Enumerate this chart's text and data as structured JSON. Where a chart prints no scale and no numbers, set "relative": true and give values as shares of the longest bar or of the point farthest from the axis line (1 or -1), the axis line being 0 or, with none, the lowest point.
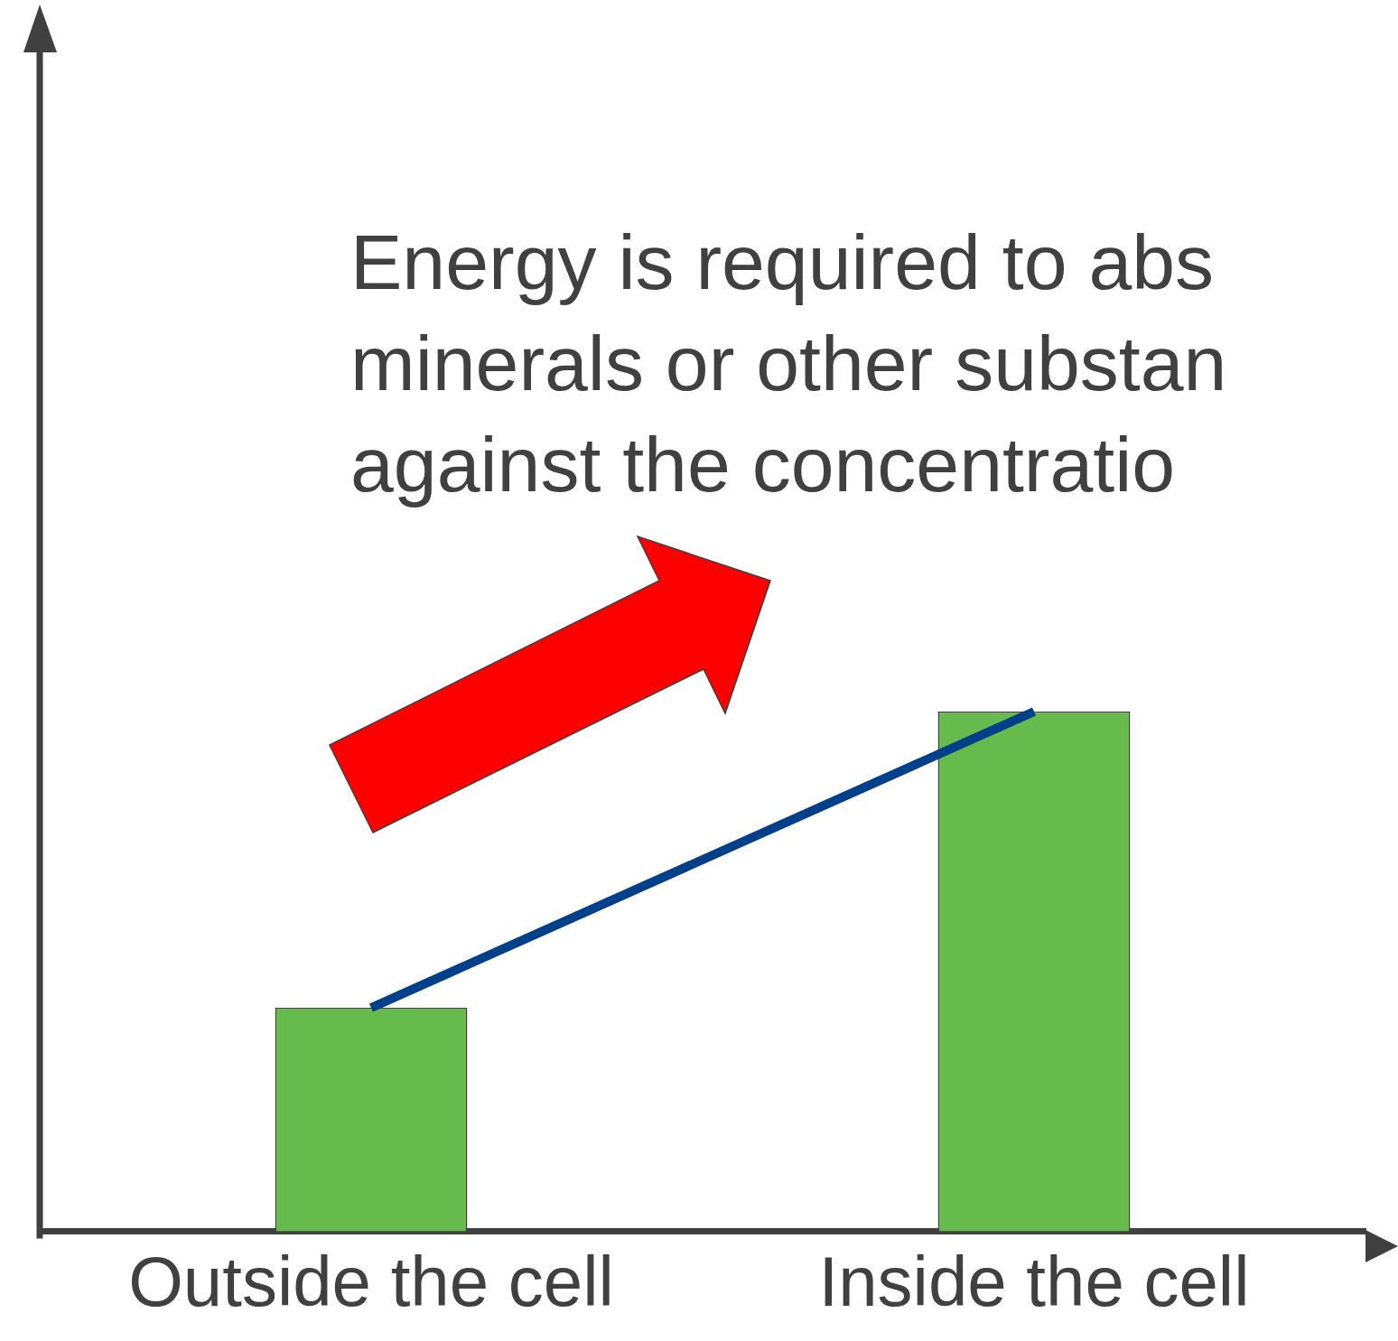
{
  "chart_data": {
    "type": "bar",
    "relative": true,
    "categories": [
      "Outside the cell",
      "Inside the cell"
    ],
    "series": [
      {
        "color": "#66bb4c",
        "values": [
          0.43,
          1
        ]
      },
      {
        "type": "line",
        "color": "#003f8a",
        "values": [
          0.43,
          1
        ]
      }
    ],
    "annotations": [
      "Energy is required to abs",
      "minerals or other substan",
      "against the concentratio"
    ],
    "legend": false,
    "grid": false
  }
}
